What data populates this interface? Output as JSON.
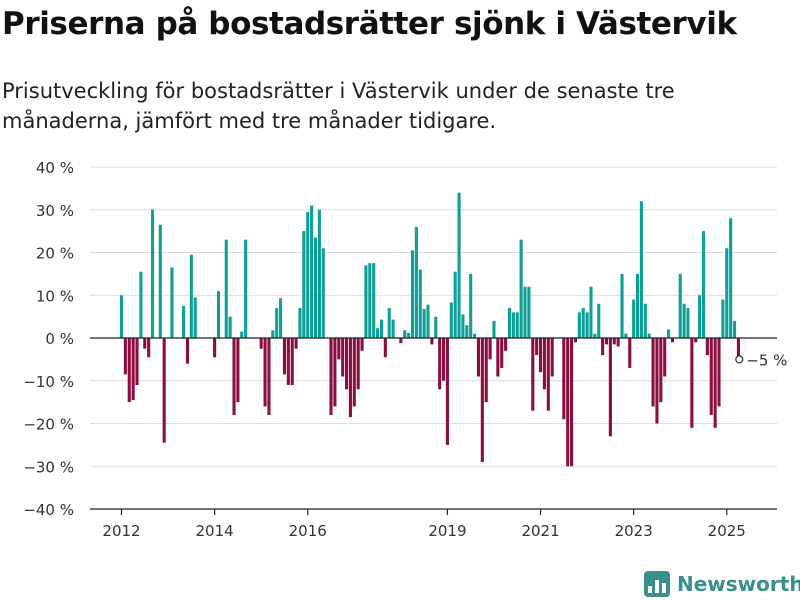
{
  "title": "Priserna på bostadsrätter sjönk i Västervik",
  "subtitle": "Prisutveckling för bostadsrätter i Västervik under de senaste tre månaderna, jämfört med tre månader tidigare.",
  "brand": {
    "name": "Newsworthy",
    "icon": "newsworthy-logo-icon",
    "color": "#3a8f8a"
  },
  "colors": {
    "positive": "#0e9f96",
    "negative": "#8b0e41",
    "grid": "#dcdcdc",
    "axis": "#222222"
  },
  "chart_data": {
    "type": "bar",
    "ylim": [
      -40,
      40
    ],
    "y_ticks": [
      40,
      30,
      20,
      10,
      0,
      -10,
      -20,
      -30,
      -40
    ],
    "y_tick_labels": [
      "40 %",
      "30 %",
      "20 %",
      "10 %",
      "0 %",
      "−10 %",
      "−20 %",
      "−30 %",
      "−40 %"
    ],
    "x_ticks": [
      "2012",
      "2014",
      "2016",
      "2019",
      "2021",
      "2023",
      "2025"
    ],
    "x_tick_at": [
      "2012-01",
      "2014-01",
      "2016-01",
      "2019-01",
      "2021-01",
      "2023-01",
      "2025-01"
    ],
    "grid": true,
    "annotation": {
      "text": "−5 %",
      "month": "2025-05",
      "value": -5
    },
    "series": [
      {
        "values": [
          {
            "month": "2012-01",
            "value": 10
          },
          {
            "month": "2012-02",
            "value": -8.5
          },
          {
            "month": "2012-03",
            "value": -15
          },
          {
            "month": "2012-04",
            "value": -14.5
          },
          {
            "month": "2012-05",
            "value": -11
          },
          {
            "month": "2012-06",
            "value": 15.5
          },
          {
            "month": "2012-07",
            "value": -2.5
          },
          {
            "month": "2012-08",
            "value": -4.5
          },
          {
            "month": "2012-09",
            "value": 30
          },
          {
            "month": "2012-11",
            "value": 26.5
          },
          {
            "month": "2012-12",
            "value": -24.5
          },
          {
            "month": "2013-02",
            "value": 16.5
          },
          {
            "month": "2013-05",
            "value": 7.5
          },
          {
            "month": "2013-06",
            "value": -6
          },
          {
            "month": "2013-07",
            "value": 19.5
          },
          {
            "month": "2013-08",
            "value": 9.5
          },
          {
            "month": "2014-01",
            "value": -4.5
          },
          {
            "month": "2014-02",
            "value": 11
          },
          {
            "month": "2014-04",
            "value": 23
          },
          {
            "month": "2014-05",
            "value": 5
          },
          {
            "month": "2014-06",
            "value": -18
          },
          {
            "month": "2014-07",
            "value": -15
          },
          {
            "month": "2014-08",
            "value": 1.5
          },
          {
            "month": "2014-09",
            "value": 23
          },
          {
            "month": "2015-01",
            "value": -2.5
          },
          {
            "month": "2015-02",
            "value": -16
          },
          {
            "month": "2015-03",
            "value": -18
          },
          {
            "month": "2015-04",
            "value": 1.8
          },
          {
            "month": "2015-05",
            "value": 7
          },
          {
            "month": "2015-06",
            "value": 9.3
          },
          {
            "month": "2015-07",
            "value": -8.5
          },
          {
            "month": "2015-08",
            "value": -11
          },
          {
            "month": "2015-09",
            "value": -11
          },
          {
            "month": "2015-10",
            "value": -2.5
          },
          {
            "month": "2015-11",
            "value": 7
          },
          {
            "month": "2015-12",
            "value": 25
          },
          {
            "month": "2016-01",
            "value": 29.5
          },
          {
            "month": "2016-02",
            "value": 31
          },
          {
            "month": "2016-03",
            "value": 23.5
          },
          {
            "month": "2016-04",
            "value": 30
          },
          {
            "month": "2016-05",
            "value": 21
          },
          {
            "month": "2016-07",
            "value": -18
          },
          {
            "month": "2016-08",
            "value": -16
          },
          {
            "month": "2016-09",
            "value": -5
          },
          {
            "month": "2016-10",
            "value": -9
          },
          {
            "month": "2016-11",
            "value": -12
          },
          {
            "month": "2016-12",
            "value": -18.5
          },
          {
            "month": "2017-01",
            "value": -16
          },
          {
            "month": "2017-02",
            "value": -12
          },
          {
            "month": "2017-03",
            "value": -3
          },
          {
            "month": "2017-04",
            "value": 17
          },
          {
            "month": "2017-05",
            "value": 17.5
          },
          {
            "month": "2017-06",
            "value": 17.5
          },
          {
            "month": "2017-07",
            "value": 2.3
          },
          {
            "month": "2017-08",
            "value": 4.3
          },
          {
            "month": "2017-09",
            "value": -4.5
          },
          {
            "month": "2017-10",
            "value": 7
          },
          {
            "month": "2017-11",
            "value": 4.3
          },
          {
            "month": "2018-01",
            "value": -1.2
          },
          {
            "month": "2018-02",
            "value": 1.8
          },
          {
            "month": "2018-03",
            "value": 1.2
          },
          {
            "month": "2018-04",
            "value": 20.5
          },
          {
            "month": "2018-05",
            "value": 26
          },
          {
            "month": "2018-06",
            "value": 16
          },
          {
            "month": "2018-07",
            "value": 6.8
          },
          {
            "month": "2018-08",
            "value": 7.8
          },
          {
            "month": "2018-09",
            "value": -1.5
          },
          {
            "month": "2018-10",
            "value": 5
          },
          {
            "month": "2018-11",
            "value": -12
          },
          {
            "month": "2018-12",
            "value": -10
          },
          {
            "month": "2019-01",
            "value": -25
          },
          {
            "month": "2019-02",
            "value": 8.3
          },
          {
            "month": "2019-03",
            "value": 15.5
          },
          {
            "month": "2019-04",
            "value": 34
          },
          {
            "month": "2019-05",
            "value": 5.5
          },
          {
            "month": "2019-06",
            "value": 3
          },
          {
            "month": "2019-07",
            "value": 15
          },
          {
            "month": "2019-08",
            "value": 1
          },
          {
            "month": "2019-09",
            "value": -9
          },
          {
            "month": "2019-10",
            "value": -29
          },
          {
            "month": "2019-11",
            "value": -15
          },
          {
            "month": "2019-12",
            "value": -5
          },
          {
            "month": "2020-01",
            "value": 4
          },
          {
            "month": "2020-02",
            "value": -9
          },
          {
            "month": "2020-03",
            "value": -7
          },
          {
            "month": "2020-04",
            "value": -3
          },
          {
            "month": "2020-05",
            "value": 7
          },
          {
            "month": "2020-06",
            "value": 6
          },
          {
            "month": "2020-07",
            "value": 6
          },
          {
            "month": "2020-08",
            "value": 23
          },
          {
            "month": "2020-09",
            "value": 12
          },
          {
            "month": "2020-10",
            "value": 12
          },
          {
            "month": "2020-11",
            "value": -17
          },
          {
            "month": "2020-12",
            "value": -4
          },
          {
            "month": "2021-01",
            "value": -8
          },
          {
            "month": "2021-02",
            "value": -12
          },
          {
            "month": "2021-03",
            "value": -17
          },
          {
            "month": "2021-04",
            "value": -9
          },
          {
            "month": "2021-07",
            "value": -19
          },
          {
            "month": "2021-08",
            "value": -30
          },
          {
            "month": "2021-09",
            "value": -30
          },
          {
            "month": "2021-10",
            "value": -1
          },
          {
            "month": "2021-11",
            "value": 6
          },
          {
            "month": "2021-12",
            "value": 7
          },
          {
            "month": "2022-01",
            "value": 6
          },
          {
            "month": "2022-02",
            "value": 12
          },
          {
            "month": "2022-03",
            "value": 1
          },
          {
            "month": "2022-04",
            "value": 8
          },
          {
            "month": "2022-05",
            "value": -4
          },
          {
            "month": "2022-06",
            "value": -1.5
          },
          {
            "month": "2022-07",
            "value": -23
          },
          {
            "month": "2022-08",
            "value": -1.5
          },
          {
            "month": "2022-09",
            "value": -2
          },
          {
            "month": "2022-10",
            "value": 15
          },
          {
            "month": "2022-11",
            "value": 1
          },
          {
            "month": "2022-12",
            "value": -7
          },
          {
            "month": "2023-01",
            "value": 9
          },
          {
            "month": "2023-02",
            "value": 15
          },
          {
            "month": "2023-03",
            "value": 32
          },
          {
            "month": "2023-04",
            "value": 8
          },
          {
            "month": "2023-05",
            "value": 1
          },
          {
            "month": "2023-06",
            "value": -16
          },
          {
            "month": "2023-07",
            "value": -20
          },
          {
            "month": "2023-08",
            "value": -15
          },
          {
            "month": "2023-09",
            "value": -9
          },
          {
            "month": "2023-10",
            "value": 2
          },
          {
            "month": "2023-11",
            "value": -1
          },
          {
            "month": "2024-01",
            "value": 15
          },
          {
            "month": "2024-02",
            "value": 8
          },
          {
            "month": "2024-03",
            "value": 7
          },
          {
            "month": "2024-04",
            "value": -21
          },
          {
            "month": "2024-05",
            "value": -1
          },
          {
            "month": "2024-06",
            "value": 10
          },
          {
            "month": "2024-07",
            "value": 25
          },
          {
            "month": "2024-08",
            "value": -4
          },
          {
            "month": "2024-09",
            "value": -18
          },
          {
            "month": "2024-10",
            "value": -21
          },
          {
            "month": "2024-11",
            "value": -16
          },
          {
            "month": "2024-12",
            "value": 9
          },
          {
            "month": "2025-01",
            "value": 21
          },
          {
            "month": "2025-02",
            "value": 28
          },
          {
            "month": "2025-03",
            "value": 4
          },
          {
            "month": "2025-04",
            "value": -5
          }
        ]
      }
    ]
  }
}
